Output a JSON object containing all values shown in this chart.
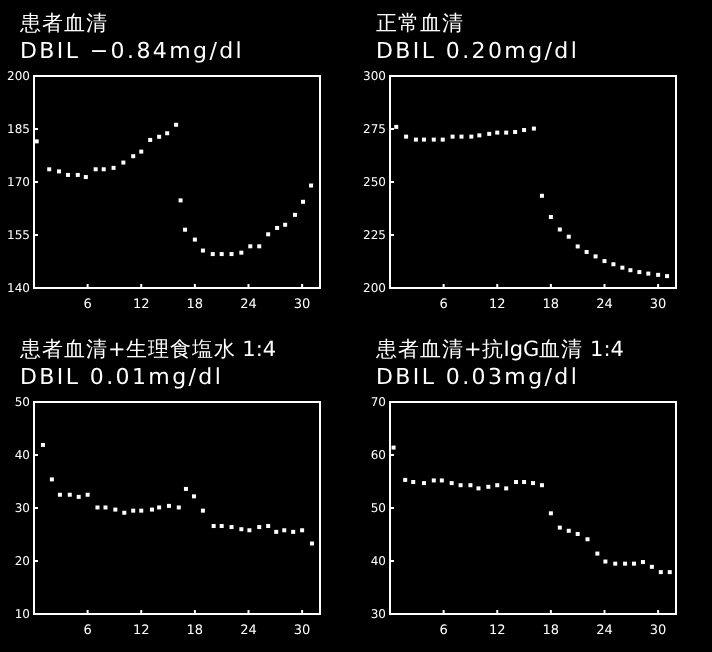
{
  "chart_data": [
    {
      "type": "scatter",
      "title": "患者血清",
      "subtitle": "DBIL −0.84mg/dl",
      "color": "#ffffff",
      "xlim": [
        0,
        32
      ],
      "xticks": [
        6,
        12,
        18,
        24,
        30
      ],
      "ylim": [
        140,
        200
      ],
      "yticks": [
        140,
        155,
        170,
        185,
        200
      ],
      "x": [
        0.3,
        1.7,
        2.8,
        3.8,
        4.9,
        5.8,
        6.9,
        7.8,
        8.9,
        10,
        11.1,
        12,
        13,
        14,
        14.9,
        15.9,
        16.4,
        16.9,
        18,
        18.9,
        20,
        21,
        22.1,
        23.2,
        24.2,
        25.2,
        26.2,
        27.2,
        28.1,
        29.2,
        30.1,
        31
      ],
      "values": [
        181.5,
        173.6,
        173,
        172,
        172,
        171.4,
        173.6,
        173.6,
        174,
        175.5,
        177.3,
        178.6,
        181.9,
        182.8,
        183.8,
        186.2,
        164.8,
        156.5,
        153.7,
        150.6,
        149.6,
        149.6,
        149.6,
        150,
        151.8,
        151.8,
        155.2,
        157,
        157.9,
        160.7,
        164.4,
        169
      ]
    },
    {
      "type": "scatter",
      "title": "正常血清",
      "subtitle": "DBIL 0.20mg/dl",
      "color": "#ffffff",
      "xlim": [
        0,
        32
      ],
      "xticks": [
        6,
        12,
        18,
        24,
        30
      ],
      "ylim": [
        200,
        300
      ],
      "yticks": [
        200,
        225,
        250,
        275,
        300
      ],
      "x": [
        0.7,
        1.8,
        2.9,
        3.8,
        4.9,
        5.9,
        7,
        8,
        9.1,
        10,
        11.1,
        12,
        13,
        14,
        15,
        16.1,
        17,
        18,
        19,
        20,
        21,
        22,
        23,
        24,
        25,
        26,
        26.9,
        27.9,
        28.9,
        30,
        31
      ],
      "values": [
        276,
        271.4,
        270,
        270,
        270,
        270,
        271.4,
        271.4,
        271.4,
        272,
        272.7,
        273.3,
        273.3,
        273.6,
        274.5,
        275.2,
        243.5,
        233.5,
        227.6,
        224.2,
        219.6,
        217,
        214.9,
        212.7,
        211.2,
        209.6,
        208.4,
        207.5,
        206.8,
        206.2,
        205.6
      ]
    },
    {
      "type": "scatter",
      "title": "患者血清+生理食塩水 1:4",
      "subtitle": "DBIL 0.01mg/dl",
      "color": "#ffffff",
      "xlim": [
        0,
        32
      ],
      "xticks": [
        6,
        12,
        18,
        24,
        30
      ],
      "ylim": [
        10,
        50
      ],
      "yticks": [
        10,
        20,
        30,
        40,
        50
      ],
      "x": [
        1,
        2,
        2.9,
        4,
        5,
        6,
        7.1,
        8,
        9.1,
        10.1,
        11.1,
        12,
        13.2,
        14,
        15.1,
        16.2,
        17,
        17.9,
        18.9,
        20.1,
        21,
        22.1,
        23.2,
        24.1,
        25.2,
        26.2,
        27.1,
        28,
        29,
        30,
        31.1
      ],
      "values": [
        41.9,
        35.4,
        32.5,
        32.5,
        32.1,
        32.5,
        30.1,
        30.1,
        29.7,
        29.1,
        29.5,
        29.5,
        29.7,
        30.1,
        30.4,
        30.1,
        33.6,
        32.2,
        29.5,
        26.6,
        26.6,
        26.4,
        26,
        25.8,
        26.4,
        26.6,
        25.5,
        25.8,
        25.5,
        25.8,
        23.3
      ]
    },
    {
      "type": "scatter",
      "title": "患者血清+抗IgG血清 1:4",
      "subtitle": "DBIL 0.03mg/dl",
      "color": "#ffffff",
      "xlim": [
        0,
        32
      ],
      "xticks": [
        6,
        12,
        18,
        24,
        30
      ],
      "ylim": [
        30,
        70
      ],
      "yticks": [
        30,
        40,
        50,
        60,
        70
      ],
      "x": [
        0.4,
        1.7,
        2.6,
        3.8,
        4.9,
        5.8,
        6.9,
        7.9,
        9,
        9.9,
        11,
        12,
        13,
        14.1,
        15,
        16,
        17,
        18,
        19,
        20,
        21,
        22.1,
        23.2,
        24.1,
        25.2,
        26.3,
        27.3,
        28.3,
        29.3,
        30.3,
        31.3
      ],
      "values": [
        61.4,
        55.3,
        54.9,
        54.7,
        55.2,
        55.2,
        54.7,
        54.3,
        54.3,
        53.7,
        54,
        54.3,
        53.7,
        54.9,
        54.9,
        54.7,
        54.3,
        49,
        46.3,
        45.7,
        45.1,
        44.1,
        41.4,
        39.9,
        39.5,
        39.5,
        39.5,
        39.8,
        38.9,
        37.9,
        37.9
      ]
    }
  ]
}
